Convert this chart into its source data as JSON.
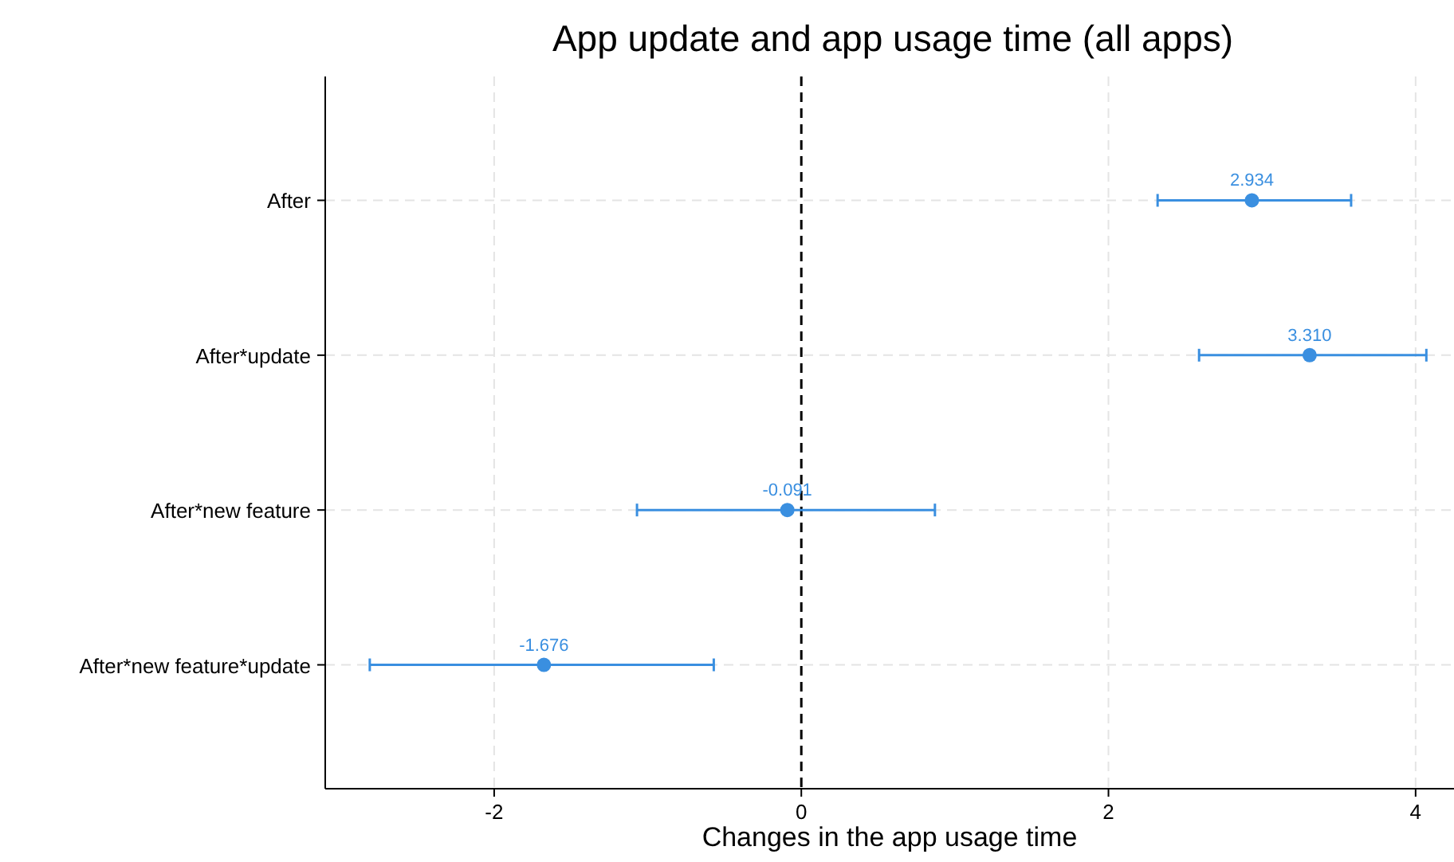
{
  "chart_data": {
    "type": "scatter",
    "orientation": "horizontal",
    "title": "App update and app usage time (all apps)",
    "xlabel": "Changes in the app usage time",
    "categories": [
      "After",
      "After*update",
      "After*new feature",
      "After*new feature*update"
    ],
    "values": [
      2.934,
      3.31,
      -0.091,
      -1.676
    ],
    "errors": [
      [
        2.32,
        3.58
      ],
      [
        2.59,
        4.07
      ],
      [
        -1.07,
        0.87
      ],
      [
        -2.81,
        -0.57
      ]
    ],
    "value_labels": [
      "2.934",
      "3.310",
      "-0.091",
      "-1.676"
    ],
    "color": "#3a8fe0",
    "marker": "circle",
    "grid": true,
    "xlim": [
      -3.1,
      4.25
    ],
    "xticks": [
      -2,
      0,
      2,
      4
    ],
    "ref_lines": [
      {
        "axis": "x",
        "value": 0,
        "color": "#000000",
        "line_style": "dashed"
      }
    ]
  }
}
